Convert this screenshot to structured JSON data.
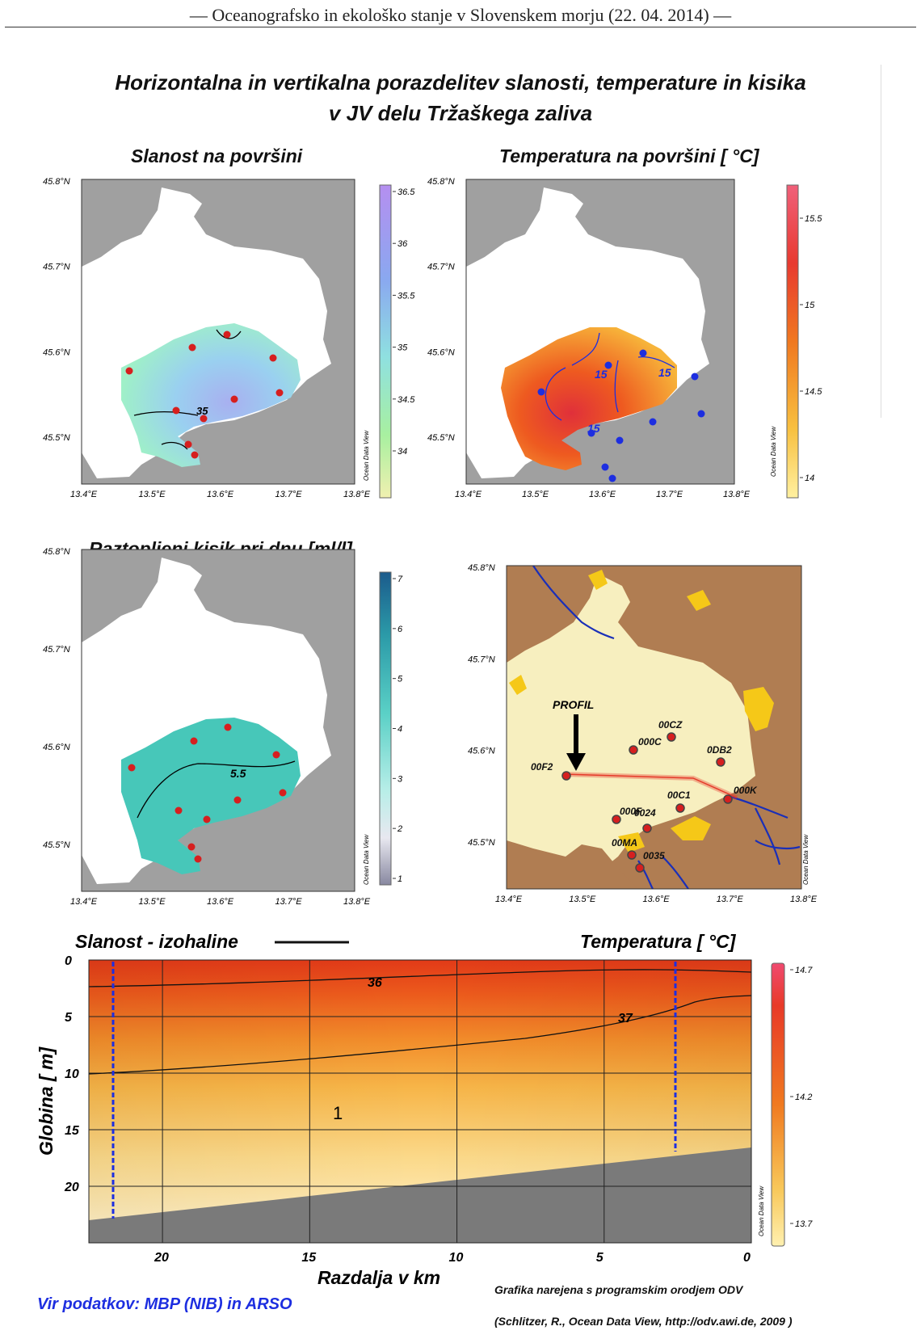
{
  "header": "— Oceanografsko in ekološko stanje v Slovenskem morju (22. 04. 2014) —",
  "title_line1": "Horizontalna in vertikalna porazdelitev slanosti, temperature in kisika",
  "title_line2": "v JV delu Tržaškega zaliva",
  "panels": {
    "salinity_title": "Slanost na površini",
    "temperature_title": "Temperatura na površini [ °C]",
    "oxygen_title": "Raztopljeni kisik pri dnu [ml/l]"
  },
  "map_axes": {
    "lat_labels": [
      "45.8°N",
      "45.7°N",
      "45.6°N",
      "45.5°N"
    ],
    "lon_labels": [
      "13.4°E",
      "13.5°E",
      "13.6°E",
      "13.7°E",
      "13.8°E"
    ]
  },
  "colorbars": {
    "salinity": [
      "36.5",
      "36",
      "35.5",
      "35",
      "34.5",
      "34"
    ],
    "temperature": [
      "15.5",
      "15",
      "14.5",
      "14"
    ],
    "oxygen": [
      "7",
      "6",
      "5",
      "4",
      "3",
      "2",
      "1"
    ],
    "section": [
      "14.7",
      "14.2",
      "13.7"
    ]
  },
  "contour_labels": {
    "salinity": [
      "35"
    ],
    "temperature": [
      "15",
      "15",
      "15"
    ],
    "oxygen": [
      "5.5"
    ],
    "section": [
      "36",
      "37"
    ]
  },
  "odv_watermark": "Ocean Data View",
  "station_map": {
    "profil_label": "PROFIL",
    "stations": [
      "00CZ",
      "000C",
      "0DB2",
      "00F2",
      "000K",
      "00C1",
      "000F",
      "0024",
      "00MA",
      "0035"
    ]
  },
  "section": {
    "left_title": "Slanost - izohaline",
    "right_title": "Temperatura  [ °C]",
    "ylabel": "Globina  [ m]",
    "xlabel": "Razdalja v km",
    "yticks": [
      "0",
      "5",
      "10",
      "15",
      "20"
    ],
    "xticks": [
      "20",
      "15",
      "10",
      "5",
      "0"
    ],
    "annotation": "1"
  },
  "footer": {
    "source": "Vir podatkov: MBP (NIB) in ARSO",
    "tool_line1": "Grafika narejena s programskim orodjem ODV",
    "tool_line2": "(Schlitzer, R., Ocean Data View, http://odv.awi.de, 2009 )"
  },
  "colors": {
    "land": "#a0a0a0",
    "sea": "#ffffff",
    "station_red": "#d61f1f",
    "station_blue": "#1d2ee0",
    "river": "#1a2fb8",
    "brown_land": "#b07d52",
    "pale_sea": "#f7efbf",
    "yellow": "#f5c818"
  }
}
